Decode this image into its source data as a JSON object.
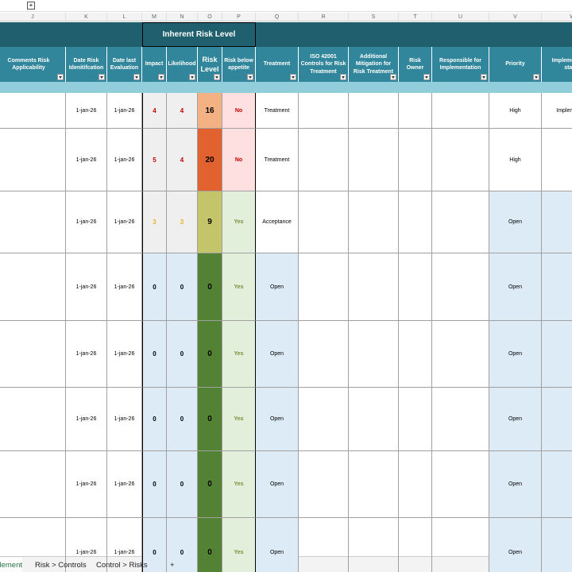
{
  "columns": [
    {
      "letter": "J",
      "header": "Comments Risk Applicability"
    },
    {
      "letter": "K",
      "header": "Date Risk Idenitifcation"
    },
    {
      "letter": "L",
      "header": "Date last Evaluation"
    },
    {
      "letter": "M",
      "header": "Impact"
    },
    {
      "letter": "N",
      "header": "Likelihood"
    },
    {
      "letter": "O",
      "header": "Risk Level"
    },
    {
      "letter": "P",
      "header": "Risk below appetite"
    },
    {
      "letter": "Q",
      "header": "Treatment"
    },
    {
      "letter": "R",
      "header": "ISO 42001 Controls for Risk Treatment"
    },
    {
      "letter": "S",
      "header": "Additional Mitigation for Risk Treatment"
    },
    {
      "letter": "T",
      "header": "Risk Owner"
    },
    {
      "letter": "U",
      "header": "Responsible for Implementation"
    },
    {
      "letter": "V",
      "header": "Priority"
    },
    {
      "letter": "W",
      "header": "Implementation status"
    }
  ],
  "group_header": "Inherent Risk Level",
  "rows": [
    {
      "date_identified": "1-jan-26",
      "date_evaluated": "1-jan-26",
      "impact": 4,
      "likelihood": 4,
      "risk_level": 16,
      "below_appetite": "No",
      "treatment": "Treatment",
      "priority": "High",
      "status": "Implemented"
    },
    {
      "date_identified": "1-jan-26",
      "date_evaluated": "1-jan-26",
      "impact": 5,
      "likelihood": 4,
      "risk_level": 20,
      "below_appetite": "No",
      "treatment": "Treatment",
      "priority": "High"
    },
    {
      "date_identified": "1-jan-26",
      "date_evaluated": "1-jan-26",
      "impact": 3,
      "likelihood": 3,
      "risk_level": 9,
      "below_appetite": "Yes",
      "treatment": "Acceptance",
      "priority": "Open"
    },
    {
      "date_identified": "1-jan-26",
      "date_evaluated": "1-jan-26",
      "impact": 0,
      "likelihood": 0,
      "risk_level": 0,
      "below_appetite": "Yes",
      "treatment": "Open",
      "priority": "Open"
    },
    {
      "date_identified": "1-jan-26",
      "date_evaluated": "1-jan-26",
      "impact": 0,
      "likelihood": 0,
      "risk_level": 0,
      "below_appetite": "Yes",
      "treatment": "Open",
      "priority": "Open"
    },
    {
      "date_identified": "1-jan-26",
      "date_evaluated": "1-jan-26",
      "impact": 0,
      "likelihood": 0,
      "risk_level": 0,
      "below_appetite": "Yes",
      "treatment": "Open",
      "priority": "Open"
    },
    {
      "date_identified": "1-jan-26",
      "date_evaluated": "1-jan-26",
      "impact": 0,
      "likelihood": 0,
      "risk_level": 0,
      "below_appetite": "Yes",
      "treatment": "Open",
      "priority": "Open"
    },
    {
      "date_identified": "1-jan-26",
      "date_evaluated": "1-jan-26",
      "impact": 0,
      "likelihood": 0,
      "risk_level": 0,
      "below_appetite": "Yes",
      "treatment": "Open",
      "priority": "Open"
    }
  ],
  "tabs": [
    "Implement",
    "Risk > Controls",
    "Control > Risks",
    "+"
  ]
}
